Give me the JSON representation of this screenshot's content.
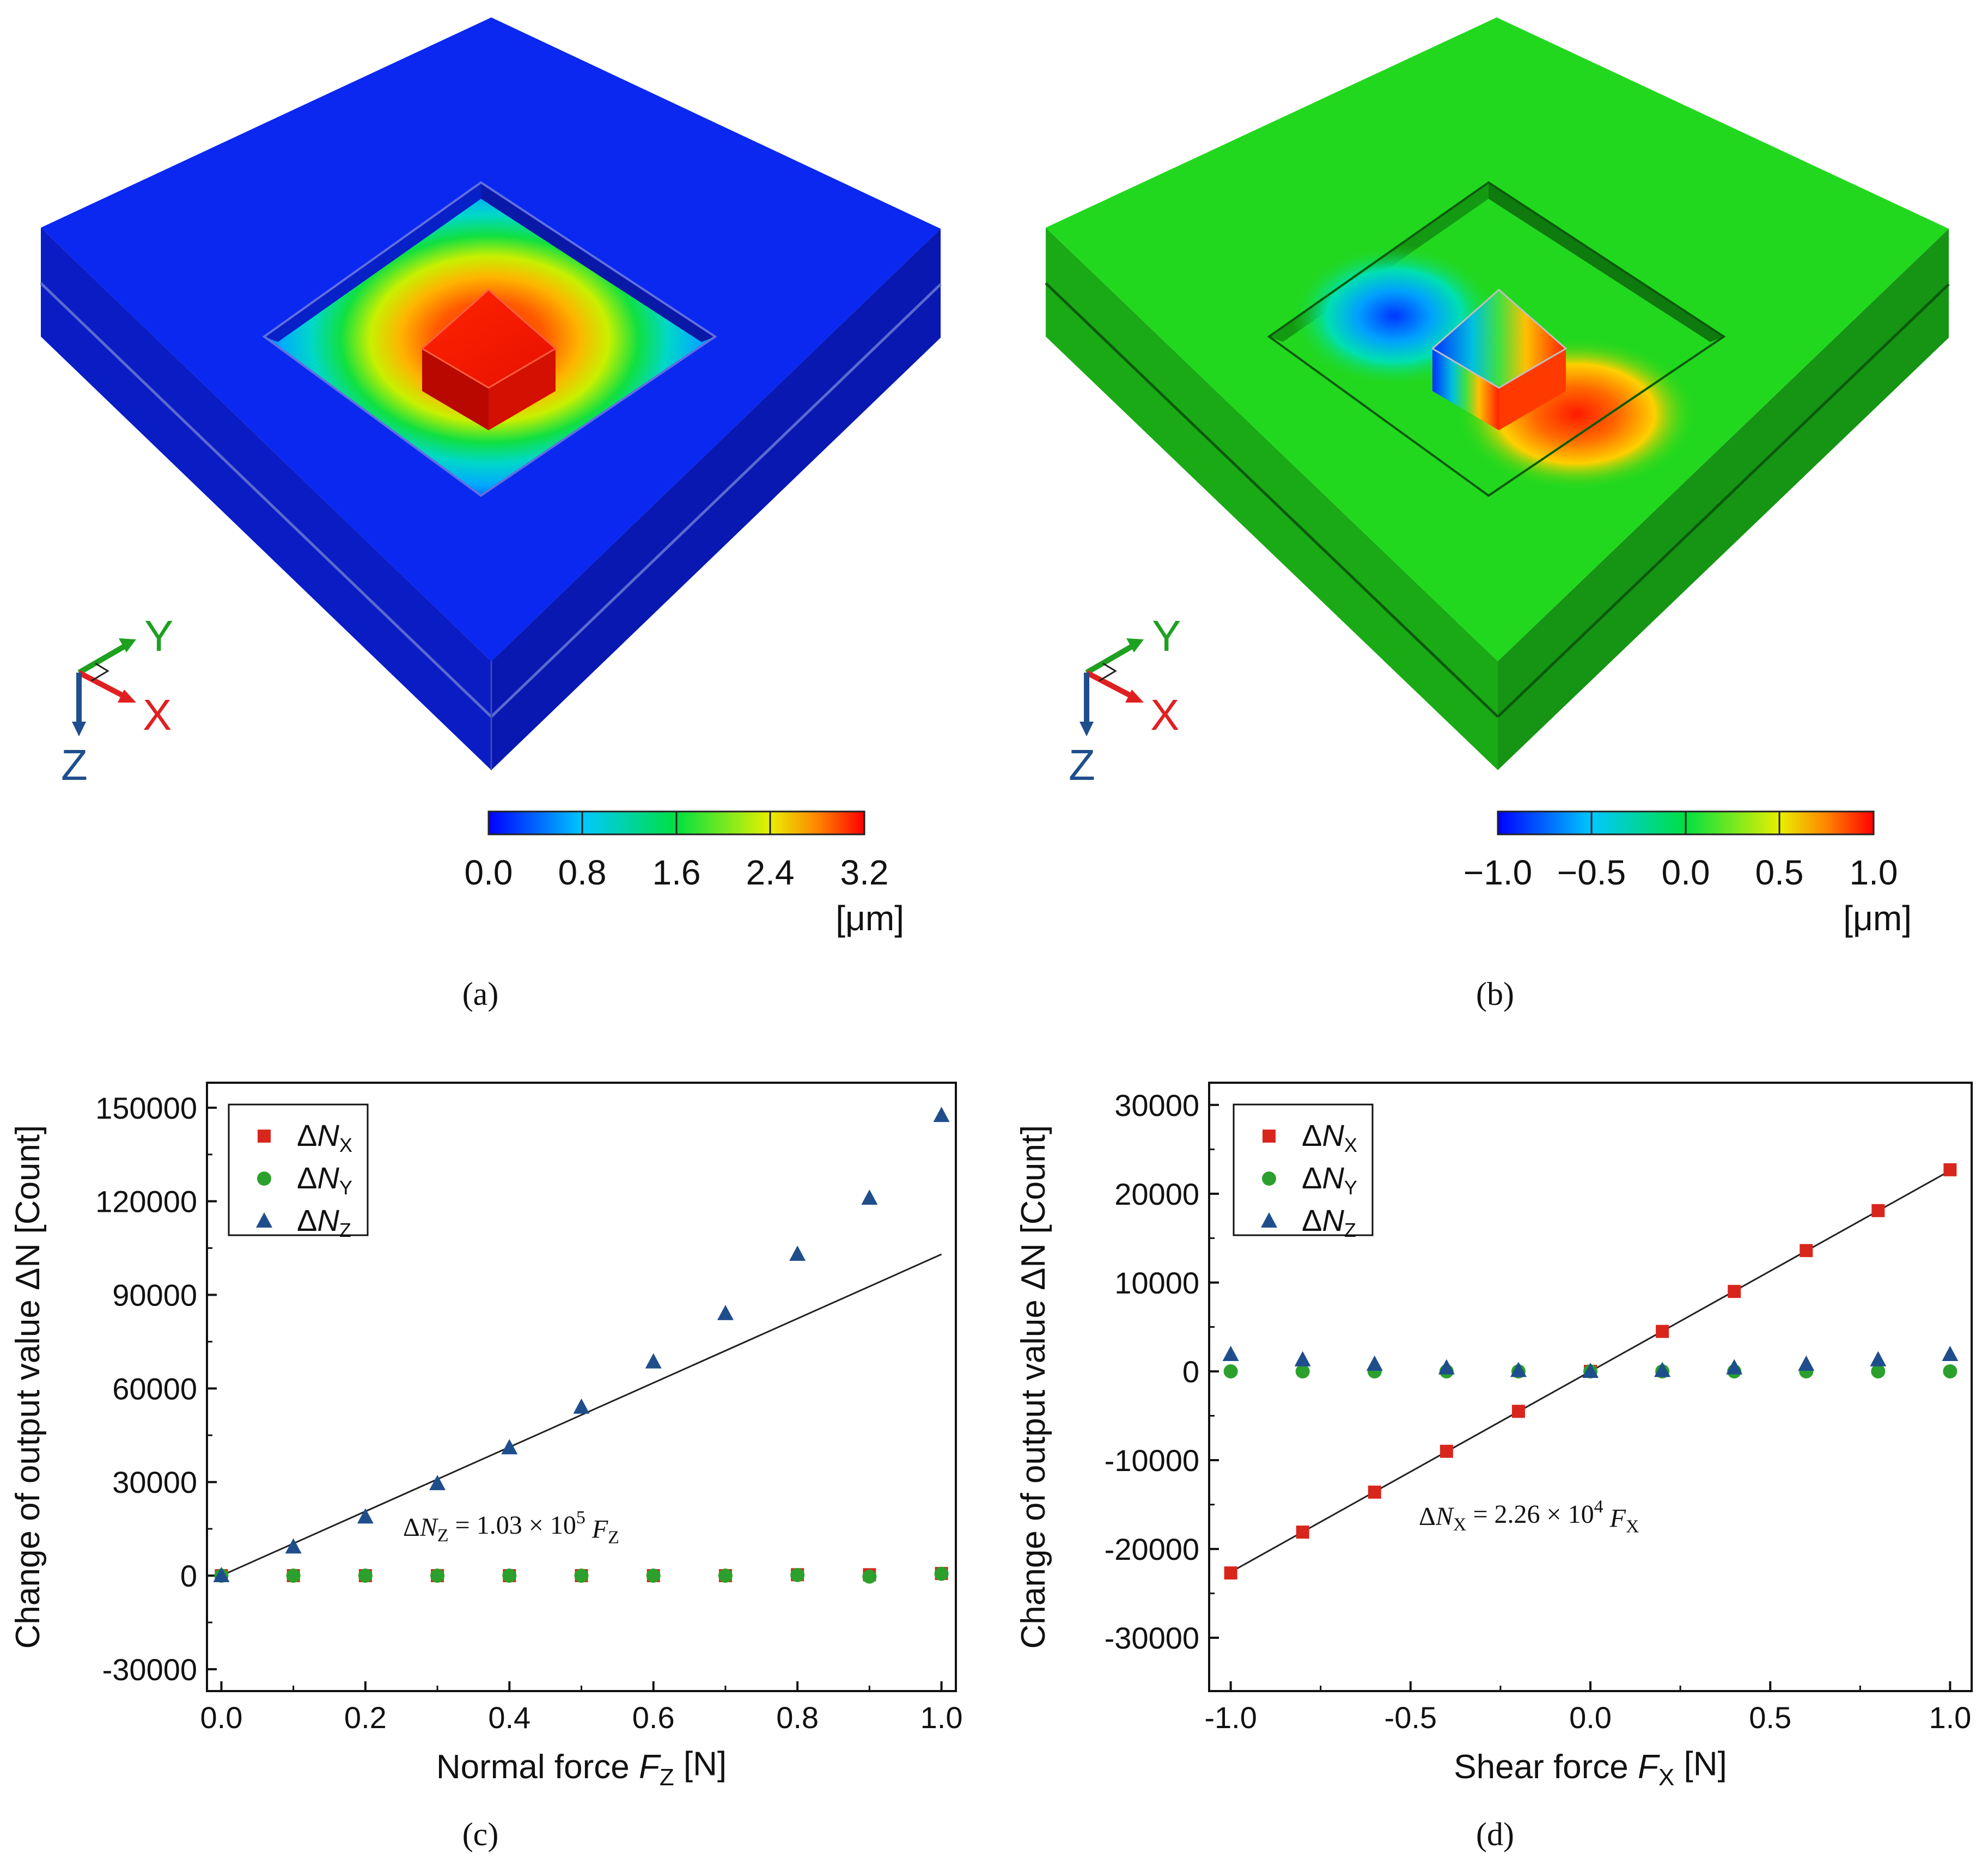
{
  "panel_labels": {
    "a": "(a)",
    "b": "(b)",
    "c": "(c)",
    "d": "(d)"
  },
  "axis_triad": {
    "x": "X",
    "y": "Y",
    "z": "Z"
  },
  "colorbar_a": {
    "ticks": [
      "0.0",
      "0.8",
      "1.6",
      "2.4",
      "3.2"
    ],
    "unit": "[μm]"
  },
  "colorbar_b": {
    "ticks": [
      "−1.0",
      "−0.5",
      "0.0",
      "0.5",
      "1.0"
    ],
    "unit": "[μm]"
  },
  "colors": {
    "nx": "#d9261c",
    "ny": "#2ca02c",
    "nz": "#1f4e8c",
    "blue_body": "#0a1fd6",
    "green_body": "#22d81e"
  },
  "chart_data": [
    {
      "id": "c",
      "type": "scatter",
      "xlabel": "Normal force F_Z [N]",
      "ylabel": "Change of output value ΔN [Count]",
      "xlim": [
        -0.02,
        1.02
      ],
      "ylim": [
        -37000,
        158000
      ],
      "xticks": [
        0.0,
        0.2,
        0.4,
        0.6,
        0.8,
        1.0
      ],
      "xtick_labels": [
        "0.0",
        "0.2",
        "0.4",
        "0.6",
        "0.8",
        "1.0"
      ],
      "yticks": [
        -30000,
        0,
        30000,
        60000,
        90000,
        120000,
        150000
      ],
      "ytick_labels": [
        "-30000",
        "0",
        "30000",
        "60000",
        "90000",
        "120000",
        "150000"
      ],
      "legend": [
        "ΔN_X",
        "ΔN_Y",
        "ΔN_Z"
      ],
      "legend_position": "top-left",
      "annotation": "ΔN_Z = 1.03 × 10^5 F_Z",
      "fit": {
        "slope": 103000,
        "intercept": 0,
        "x_range": [
          0,
          1
        ]
      },
      "series": [
        {
          "name": "ΔN_X",
          "marker": "square",
          "x": [
            0,
            0.1,
            0.2,
            0.3,
            0.4,
            0.5,
            0.6,
            0.7,
            0.8,
            0.9,
            1.0
          ],
          "y": [
            0,
            0,
            0,
            0,
            0,
            0,
            0,
            0,
            300,
            300,
            700
          ]
        },
        {
          "name": "ΔN_Y",
          "marker": "circle",
          "x": [
            0,
            0.1,
            0.2,
            0.3,
            0.4,
            0.5,
            0.6,
            0.7,
            0.8,
            0.9,
            1.0
          ],
          "y": [
            0,
            0,
            0,
            0,
            0,
            0,
            0,
            0,
            200,
            -300,
            600
          ]
        },
        {
          "name": "ΔN_Z",
          "marker": "triangle",
          "x": [
            0,
            0.1,
            0.2,
            0.3,
            0.4,
            0.5,
            0.6,
            0.7,
            0.8,
            0.9,
            1.0
          ],
          "y": [
            0,
            9200,
            18800,
            29500,
            41000,
            54000,
            68500,
            84000,
            103000,
            121000,
            147500
          ]
        }
      ]
    },
    {
      "id": "d",
      "type": "scatter",
      "xlabel": "Shear force F_X [N]",
      "ylabel": "Change of output value ΔN [Count]",
      "xlim": [
        -1.06,
        1.06
      ],
      "ylim": [
        -36000,
        32500
      ],
      "xticks": [
        -1.0,
        -0.5,
        0.0,
        0.5,
        1.0
      ],
      "xtick_labels": [
        "-1.0",
        "-0.5",
        "0.0",
        "0.5",
        "1.0"
      ],
      "yticks": [
        -30000,
        -20000,
        -10000,
        0,
        10000,
        20000,
        30000
      ],
      "ytick_labels": [
        "-30000",
        "-20000",
        "-10000",
        "0",
        "10000",
        "20000",
        "30000"
      ],
      "legend": [
        "ΔN_X",
        "ΔN_Y",
        "ΔN_Z"
      ],
      "legend_position": "top-left",
      "annotation": "ΔN_X = 2.26 × 10^4 F_X",
      "fit": {
        "slope": 22600,
        "intercept": 0,
        "x_range": [
          -1,
          1
        ]
      },
      "series": [
        {
          "name": "ΔN_X",
          "marker": "square",
          "x": [
            -1.0,
            -0.8,
            -0.6,
            -0.4,
            -0.2,
            0.0,
            0.2,
            0.4,
            0.6,
            0.8,
            1.0
          ],
          "y": [
            -22700,
            -18100,
            -13600,
            -9000,
            -4500,
            0,
            4500,
            9000,
            13600,
            18100,
            22700
          ]
        },
        {
          "name": "ΔN_Y",
          "marker": "circle",
          "x": [
            -1.0,
            -0.8,
            -0.6,
            -0.4,
            -0.2,
            0.0,
            0.2,
            0.4,
            0.6,
            0.8,
            1.0
          ],
          "y": [
            0,
            0,
            0,
            0,
            0,
            0,
            0,
            0,
            0,
            0,
            0
          ]
        },
        {
          "name": "ΔN_Z",
          "marker": "triangle",
          "x": [
            -1.0,
            -0.8,
            -0.6,
            -0.4,
            -0.2,
            0.0,
            0.2,
            0.4,
            0.6,
            0.8,
            1.0
          ],
          "y": [
            1900,
            1300,
            800,
            400,
            100,
            0,
            100,
            400,
            800,
            1300,
            1900
          ]
        }
      ]
    }
  ]
}
